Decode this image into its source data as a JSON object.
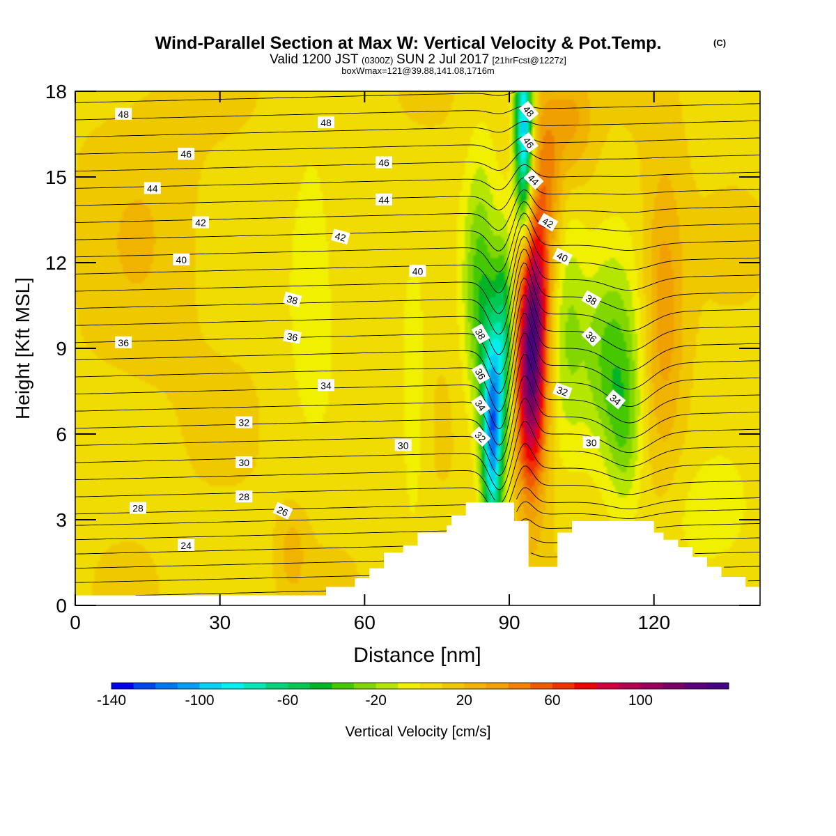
{
  "chart_data": {
    "type": "heatmap",
    "title": "Wind-Parallel Section at Max W: Vertical Velocity & Pot.Temp.",
    "title_mark": "(C)",
    "subtitle": {
      "valid": "Valid 1200 JST",
      "utc": "(0300Z)",
      "date": "SUN 2 Jul 2017",
      "fcst": "[21hrFcst@1227z]"
    },
    "subtitle2": "boxWmax=121@39.88,141.08,1716m",
    "xlabel": "Distance [nm]",
    "ylabel": "Height [Kft MSL]",
    "xlim": [
      0,
      142
    ],
    "ylim": [
      0,
      18
    ],
    "xticks": [
      0,
      30,
      60,
      90,
      120
    ],
    "yticks": [
      0,
      3,
      6,
      9,
      12,
      15,
      18
    ],
    "colorbar": {
      "label": "Vertical Velocity [cm/s]",
      "range": [
        -140,
        140
      ],
      "tick_values": [
        -140,
        -100,
        -60,
        -20,
        20,
        60,
        100
      ],
      "tick_labels": [
        "-140",
        "-100",
        "-60",
        "-20",
        "20",
        "60",
        "100"
      ],
      "colors": [
        "#0000f0",
        "#0046f0",
        "#0078f0",
        "#00a0f0",
        "#00d2f0",
        "#00f0f0",
        "#00e6b4",
        "#00d278",
        "#00c850",
        "#00b428",
        "#46c800",
        "#82d700",
        "#b4e600",
        "#f0f000",
        "#f0dc00",
        "#f0c800",
        "#f0b400",
        "#f0a000",
        "#f08200",
        "#f05a00",
        "#f03200",
        "#f00000",
        "#d2003c",
        "#b40050",
        "#96005a",
        "#780064",
        "#5a0078",
        "#460082"
      ],
      "background_value": 8
    },
    "terrain": [
      [
        0,
        0.35
      ],
      [
        52,
        0.35
      ],
      [
        52,
        0.65
      ],
      [
        58,
        0.65
      ],
      [
        58,
        0.95
      ],
      [
        61,
        0.95
      ],
      [
        61,
        1.3
      ],
      [
        64,
        1.3
      ],
      [
        64,
        1.85
      ],
      [
        68,
        1.85
      ],
      [
        68,
        2.1
      ],
      [
        71,
        2.1
      ],
      [
        71,
        2.55
      ],
      [
        77,
        2.55
      ],
      [
        77,
        2.8
      ],
      [
        78,
        2.8
      ],
      [
        78,
        3.15
      ],
      [
        81,
        3.15
      ],
      [
        81,
        3.6
      ],
      [
        91,
        3.6
      ],
      [
        91,
        2.95
      ],
      [
        94,
        2.95
      ],
      [
        94,
        1.35
      ],
      [
        100,
        1.35
      ],
      [
        100,
        2.55
      ],
      [
        103,
        2.55
      ],
      [
        103,
        2.95
      ],
      [
        120,
        2.95
      ],
      [
        120,
        2.55
      ],
      [
        122,
        2.55
      ],
      [
        122,
        2.3
      ],
      [
        125,
        2.3
      ],
      [
        125,
        2.05
      ],
      [
        128,
        2.05
      ],
      [
        128,
        1.7
      ],
      [
        131,
        1.7
      ],
      [
        131,
        1.35
      ],
      [
        134,
        1.35
      ],
      [
        134,
        1.0
      ],
      [
        139,
        1.0
      ],
      [
        139,
        0.65
      ],
      [
        142,
        0.65
      ]
    ],
    "w_features": [
      {
        "x": 94.5,
        "y": 8.0,
        "sx": 2.2,
        "sy": 2.8,
        "amp": 115
      },
      {
        "x": 95.5,
        "y": 11.0,
        "sx": 1.8,
        "sy": 1.8,
        "amp": 40
      },
      {
        "x": 97.5,
        "y": 15.0,
        "sx": 2.4,
        "sy": 2.5,
        "amp": 35
      },
      {
        "x": 86.5,
        "y": 6.0,
        "sx": 1.5,
        "sy": 2.6,
        "amp": -115
      },
      {
        "x": 89.0,
        "y": 9.5,
        "sx": 1.4,
        "sy": 2.5,
        "amp": -60
      },
      {
        "x": 93.0,
        "y": 16.5,
        "sx": 1.3,
        "sy": 2.5,
        "amp": -105
      },
      {
        "x": 84.0,
        "y": 11.0,
        "sx": 2.5,
        "sy": 3.2,
        "amp": -45
      },
      {
        "x": 111.0,
        "y": 8.5,
        "sx": 4.5,
        "sy": 2.5,
        "amp": -42
      },
      {
        "x": 114.0,
        "y": 6.0,
        "sx": 2.5,
        "sy": 2.0,
        "amp": -25
      },
      {
        "x": 102.0,
        "y": 10.0,
        "sx": 2.5,
        "sy": 3.0,
        "amp": -25
      },
      {
        "x": 70.0,
        "y": 7.0,
        "sx": 2.0,
        "sy": 3.0,
        "amp": -18
      },
      {
        "x": 49.0,
        "y": 11.5,
        "sx": 3.5,
        "sy": 3.0,
        "amp": -20
      },
      {
        "x": 122.0,
        "y": 10.5,
        "sx": 3.0,
        "sy": 3.5,
        "amp": 30
      },
      {
        "x": 103.0,
        "y": 17.0,
        "sx": 3.0,
        "sy": 1.5,
        "amp": 25
      },
      {
        "x": 45.0,
        "y": 1.8,
        "sx": 2.0,
        "sy": 1.0,
        "amp": 18
      },
      {
        "x": 14.0,
        "y": 13.0,
        "sx": 8.0,
        "sy": 4.0,
        "amp": 10
      },
      {
        "x": 132.0,
        "y": 3.0,
        "sx": 6.0,
        "sy": 1.5,
        "amp": -15
      }
    ],
    "theta_levels": {
      "start": 20,
      "end": 50,
      "step": 1
    },
    "theta_labels": [
      {
        "text": "48",
        "x": 10,
        "y": 17.2,
        "rot": 0
      },
      {
        "text": "48",
        "x": 52,
        "y": 16.9,
        "rot": 0
      },
      {
        "text": "48",
        "x": 94,
        "y": 17.3,
        "rot": 50
      },
      {
        "text": "46",
        "x": 23,
        "y": 15.8,
        "rot": 0
      },
      {
        "text": "46",
        "x": 64,
        "y": 15.5,
        "rot": 0
      },
      {
        "text": "46",
        "x": 94,
        "y": 16.2,
        "rot": 55
      },
      {
        "text": "44",
        "x": 16,
        "y": 14.6,
        "rot": 0
      },
      {
        "text": "44",
        "x": 64,
        "y": 14.2,
        "rot": 0
      },
      {
        "text": "44",
        "x": 95,
        "y": 14.9,
        "rot": 45
      },
      {
        "text": "42",
        "x": 26,
        "y": 13.4,
        "rot": 0
      },
      {
        "text": "42",
        "x": 55,
        "y": 12.9,
        "rot": 15
      },
      {
        "text": "42",
        "x": 98,
        "y": 13.4,
        "rot": 30
      },
      {
        "text": "40",
        "x": 22,
        "y": 12.1,
        "rot": 0
      },
      {
        "text": "40",
        "x": 71,
        "y": 11.7,
        "rot": 0
      },
      {
        "text": "40",
        "x": 101,
        "y": 12.2,
        "rot": 25
      },
      {
        "text": "38",
        "x": 45,
        "y": 10.7,
        "rot": 15
      },
      {
        "text": "38",
        "x": 84,
        "y": 9.5,
        "rot": 60
      },
      {
        "text": "38",
        "x": 107,
        "y": 10.7,
        "rot": 30
      },
      {
        "text": "36",
        "x": 10,
        "y": 9.2,
        "rot": 0
      },
      {
        "text": "36",
        "x": 45,
        "y": 9.4,
        "rot": 10
      },
      {
        "text": "36",
        "x": 84,
        "y": 8.1,
        "rot": 60
      },
      {
        "text": "36",
        "x": 107,
        "y": 9.4,
        "rot": 45
      },
      {
        "text": "34",
        "x": 52,
        "y": 7.7,
        "rot": 0
      },
      {
        "text": "34",
        "x": 84,
        "y": 7.0,
        "rot": 55
      },
      {
        "text": "34",
        "x": 112,
        "y": 7.2,
        "rot": 40
      },
      {
        "text": "32",
        "x": 35,
        "y": 6.4,
        "rot": 0
      },
      {
        "text": "32",
        "x": 84,
        "y": 5.9,
        "rot": 45
      },
      {
        "text": "32",
        "x": 101,
        "y": 7.5,
        "rot": 20
      },
      {
        "text": "30",
        "x": 35,
        "y": 5.0,
        "rot": 0
      },
      {
        "text": "30",
        "x": 68,
        "y": 5.6,
        "rot": 0
      },
      {
        "text": "30",
        "x": 107,
        "y": 5.7,
        "rot": 0
      },
      {
        "text": "28",
        "x": 13,
        "y": 3.4,
        "rot": 0
      },
      {
        "text": "28",
        "x": 35,
        "y": 3.8,
        "rot": 0
      },
      {
        "text": "26",
        "x": 43,
        "y": 3.3,
        "rot": 25
      },
      {
        "text": "24",
        "x": 23,
        "y": 2.1,
        "rot": 0
      }
    ]
  }
}
